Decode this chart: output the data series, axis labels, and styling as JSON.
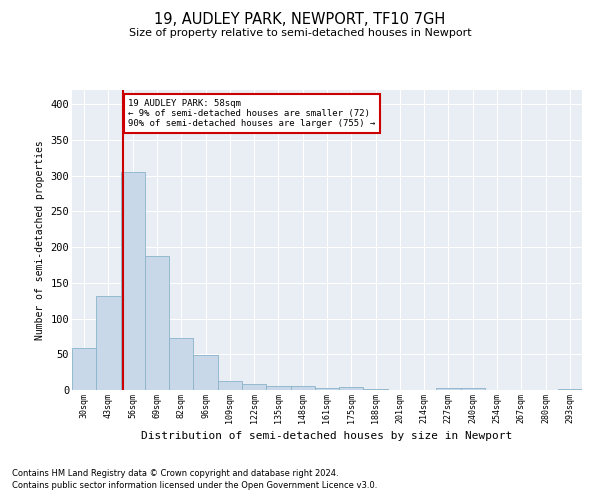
{
  "title": "19, AUDLEY PARK, NEWPORT, TF10 7GH",
  "subtitle": "Size of property relative to semi-detached houses in Newport",
  "xlabel": "Distribution of semi-detached houses by size in Newport",
  "ylabel": "Number of semi-detached properties",
  "footnote1": "Contains HM Land Registry data © Crown copyright and database right 2024.",
  "footnote2": "Contains public sector information licensed under the Open Government Licence v3.0.",
  "annotation_line1": "19 AUDLEY PARK: 58sqm",
  "annotation_line2": "← 9% of semi-detached houses are smaller (72)",
  "annotation_line3": "90% of semi-detached houses are larger (755) →",
  "bar_color": "#c8d8e8",
  "bar_edge_color": "#8ab4cc",
  "vline_color": "#cc0000",
  "annotation_box_color": "#cc0000",
  "background_color": "#e8eef4",
  "categories": [
    "30sqm",
    "43sqm",
    "56sqm",
    "69sqm",
    "82sqm",
    "96sqm",
    "109sqm",
    "122sqm",
    "135sqm",
    "148sqm",
    "161sqm",
    "175sqm",
    "188sqm",
    "201sqm",
    "214sqm",
    "227sqm",
    "240sqm",
    "254sqm",
    "267sqm",
    "280sqm",
    "293sqm"
  ],
  "values": [
    59,
    132,
    305,
    187,
    73,
    49,
    12,
    9,
    6,
    6,
    3,
    4,
    2,
    0,
    0,
    3,
    3,
    0,
    0,
    0,
    2
  ],
  "ylim": [
    0,
    420
  ],
  "yticks": [
    0,
    50,
    100,
    150,
    200,
    250,
    300,
    350,
    400
  ],
  "vline_x_index": 1.62
}
